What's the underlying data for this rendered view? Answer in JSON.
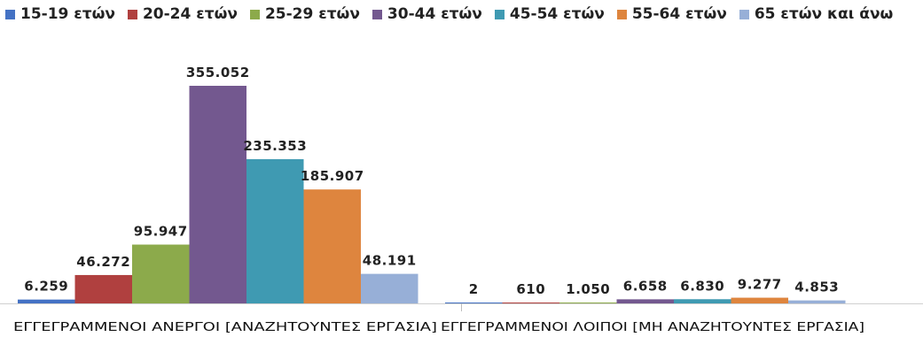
{
  "chart_data": {
    "type": "bar",
    "categories": [
      "ΕΓΓΕΓΡΑΜΜΕΝΟΙ ΑΝΕΡΓΟΙ [ΑΝΑΖΗΤΟΥΝΤΕΣ ΕΡΓΑΣΙΑ]",
      "ΕΓΓΕΓΡΑΜΜΕΝΟΙ ΛΟΙΠΟΙ [ΜΗ ΑΝΑΖΗΤΟΥΝΤΕΣ ΕΡΓΑΣΙΑ]"
    ],
    "series": [
      {
        "name": "15-19 ετών",
        "color": "#4472c4",
        "values": [
          6259,
          2
        ],
        "labels": [
          "6.259",
          "2"
        ]
      },
      {
        "name": "20-24 ετών",
        "color": "#b0403f",
        "values": [
          46272,
          610
        ],
        "labels": [
          "46.272",
          "610"
        ]
      },
      {
        "name": "25-29 ετών",
        "color": "#8caa4b",
        "values": [
          95947,
          1050
        ],
        "labels": [
          "95.947",
          "1.050"
        ]
      },
      {
        "name": "30-44 ετών",
        "color": "#73588f",
        "values": [
          355052,
          6658
        ],
        "labels": [
          "355.052",
          "6.658"
        ]
      },
      {
        "name": "45-54 ετών",
        "color": "#3f9ab2",
        "values": [
          235353,
          6830
        ],
        "labels": [
          "235.353",
          "6.830"
        ]
      },
      {
        "name": "55-64 ετών",
        "color": "#de853e",
        "values": [
          185907,
          9277
        ],
        "labels": [
          "185.907",
          "9.277"
        ]
      },
      {
        "name": "65 ετών και άνω",
        "color": "#97afd7",
        "values": [
          48191,
          4853
        ],
        "labels": [
          "48.191",
          "4.853"
        ]
      }
    ],
    "ylim": [
      0,
      355052
    ],
    "grid": false,
    "legend_position": "top"
  }
}
